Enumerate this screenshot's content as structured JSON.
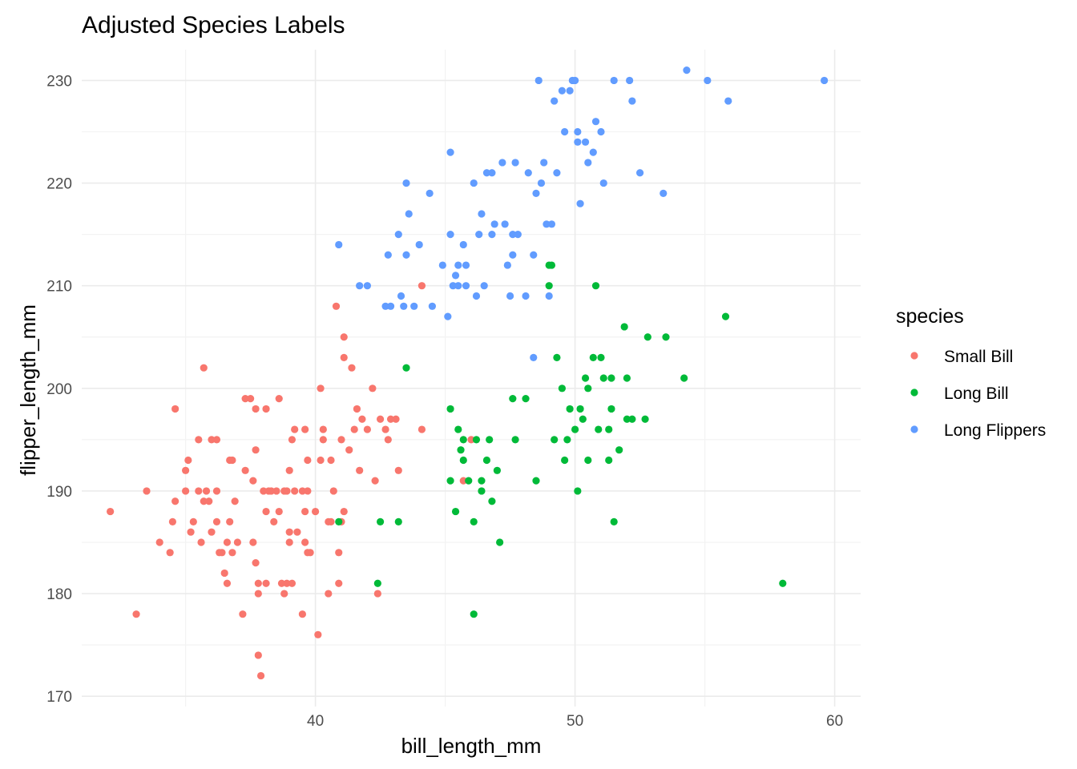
{
  "chart_data": {
    "type": "scatter",
    "title": "Adjusted Species Labels",
    "xlabel": "bill_length_mm",
    "ylabel": "flipper_length_mm",
    "xlim": [
      31,
      61
    ],
    "ylim": [
      169,
      233
    ],
    "x_ticks": [
      40,
      50,
      60
    ],
    "y_ticks": [
      170,
      180,
      190,
      200,
      210,
      220,
      230
    ],
    "grid": true,
    "legend": {
      "title": "species",
      "position": "right"
    },
    "series": [
      {
        "name": "Small Bill",
        "color": "#F8766D",
        "points": [
          [
            32.1,
            188
          ],
          [
            33.1,
            178
          ],
          [
            33.5,
            190
          ],
          [
            34.0,
            185
          ],
          [
            34.4,
            184
          ],
          [
            34.5,
            187
          ],
          [
            34.6,
            189
          ],
          [
            34.6,
            198
          ],
          [
            35.0,
            190
          ],
          [
            35.0,
            192
          ],
          [
            35.1,
            193
          ],
          [
            35.2,
            186
          ],
          [
            35.3,
            187
          ],
          [
            35.5,
            190
          ],
          [
            35.5,
            195
          ],
          [
            35.6,
            185
          ],
          [
            35.7,
            189
          ],
          [
            35.7,
            202
          ],
          [
            35.8,
            190
          ],
          [
            35.9,
            189
          ],
          [
            36.0,
            186
          ],
          [
            36.0,
            195
          ],
          [
            36.2,
            190
          ],
          [
            36.2,
            187
          ],
          [
            36.3,
            184
          ],
          [
            36.4,
            184
          ],
          [
            36.5,
            182
          ],
          [
            36.6,
            185
          ],
          [
            36.6,
            181
          ],
          [
            36.7,
            187
          ],
          [
            36.7,
            193
          ],
          [
            36.8,
            184
          ],
          [
            36.9,
            189
          ],
          [
            36.8,
            193
          ],
          [
            37.0,
            185
          ],
          [
            37.2,
            178
          ],
          [
            37.3,
            192
          ],
          [
            37.3,
            199
          ],
          [
            37.5,
            199
          ],
          [
            37.6,
            191
          ],
          [
            37.6,
            185
          ],
          [
            37.7,
            183
          ],
          [
            37.7,
            198
          ],
          [
            37.7,
            194
          ],
          [
            37.8,
            181
          ],
          [
            37.8,
            180
          ],
          [
            37.8,
            174
          ],
          [
            37.9,
            172
          ],
          [
            38.0,
            190
          ],
          [
            38.1,
            181
          ],
          [
            38.1,
            188
          ],
          [
            38.1,
            198
          ],
          [
            38.2,
            190
          ],
          [
            38.3,
            190
          ],
          [
            38.5,
            190
          ],
          [
            38.6,
            199
          ],
          [
            38.6,
            188
          ],
          [
            38.7,
            181
          ],
          [
            38.8,
            180
          ],
          [
            38.8,
            190
          ],
          [
            38.9,
            181
          ],
          [
            38.9,
            190
          ],
          [
            39.0,
            185
          ],
          [
            39.0,
            186
          ],
          [
            39.0,
            192
          ],
          [
            39.1,
            181
          ],
          [
            39.1,
            195
          ],
          [
            39.2,
            190
          ],
          [
            39.2,
            196
          ],
          [
            39.3,
            186
          ],
          [
            39.5,
            190
          ],
          [
            39.5,
            178
          ],
          [
            39.6,
            188
          ],
          [
            39.6,
            196
          ],
          [
            39.6,
            185
          ],
          [
            39.7,
            190
          ],
          [
            39.7,
            184
          ],
          [
            39.8,
            184
          ],
          [
            40.0,
            188
          ],
          [
            40.1,
            176
          ],
          [
            40.2,
            200
          ],
          [
            40.2,
            193
          ],
          [
            40.3,
            196
          ],
          [
            40.3,
            195
          ],
          [
            40.5,
            180
          ],
          [
            40.5,
            187
          ],
          [
            40.6,
            193
          ],
          [
            40.6,
            187
          ],
          [
            40.7,
            190
          ],
          [
            40.8,
            208
          ],
          [
            40.9,
            184
          ],
          [
            41.0,
            187
          ],
          [
            41.0,
            195
          ],
          [
            41.1,
            188
          ],
          [
            41.1,
            203
          ],
          [
            41.1,
            205
          ],
          [
            41.3,
            194
          ],
          [
            41.4,
            202
          ],
          [
            41.5,
            196
          ],
          [
            41.6,
            198
          ],
          [
            41.8,
            197
          ],
          [
            42.0,
            196
          ],
          [
            42.2,
            200
          ],
          [
            42.3,
            191
          ],
          [
            42.5,
            197
          ],
          [
            42.7,
            196
          ],
          [
            42.8,
            195
          ],
          [
            42.9,
            197
          ],
          [
            43.1,
            197
          ],
          [
            43.2,
            192
          ],
          [
            44.1,
            196
          ],
          [
            44.1,
            210
          ],
          [
            45.7,
            191
          ],
          [
            46.0,
            195
          ],
          [
            42.4,
            180
          ],
          [
            41.7,
            192
          ],
          [
            40.9,
            181
          ],
          [
            39.7,
            193
          ],
          [
            38.4,
            187
          ],
          [
            36.2,
            195
          ]
        ]
      },
      {
        "name": "Long Bill",
        "color": "#00BA38",
        "points": [
          [
            40.9,
            187
          ],
          [
            42.4,
            181
          ],
          [
            42.5,
            187
          ],
          [
            43.2,
            187
          ],
          [
            43.5,
            202
          ],
          [
            45.2,
            191
          ],
          [
            45.2,
            198
          ],
          [
            45.4,
            188
          ],
          [
            45.5,
            196
          ],
          [
            45.6,
            194
          ],
          [
            45.7,
            195
          ],
          [
            45.7,
            193
          ],
          [
            45.9,
            191
          ],
          [
            46.1,
            178
          ],
          [
            46.1,
            187
          ],
          [
            46.2,
            195
          ],
          [
            46.4,
            190
          ],
          [
            46.4,
            191
          ],
          [
            46.6,
            193
          ],
          [
            46.7,
            195
          ],
          [
            46.8,
            189
          ],
          [
            47.0,
            192
          ],
          [
            47.1,
            185
          ],
          [
            47.6,
            199
          ],
          [
            47.7,
            195
          ],
          [
            48.1,
            199
          ],
          [
            48.5,
            191
          ],
          [
            49.0,
            210
          ],
          [
            49.0,
            212
          ],
          [
            49.1,
            212
          ],
          [
            49.2,
            195
          ],
          [
            49.3,
            203
          ],
          [
            49.5,
            200
          ],
          [
            49.6,
            193
          ],
          [
            49.7,
            195
          ],
          [
            49.8,
            198
          ],
          [
            50.0,
            196
          ],
          [
            50.1,
            190
          ],
          [
            50.2,
            198
          ],
          [
            50.3,
            197
          ],
          [
            50.4,
            201
          ],
          [
            50.5,
            193
          ],
          [
            50.5,
            200
          ],
          [
            50.7,
            203
          ],
          [
            50.8,
            210
          ],
          [
            50.9,
            196
          ],
          [
            51.0,
            203
          ],
          [
            51.1,
            201
          ],
          [
            51.3,
            193
          ],
          [
            51.3,
            196
          ],
          [
            51.4,
            198
          ],
          [
            51.4,
            201
          ],
          [
            51.5,
            187
          ],
          [
            51.7,
            194
          ],
          [
            51.9,
            206
          ],
          [
            52.0,
            197
          ],
          [
            52.0,
            201
          ],
          [
            52.2,
            197
          ],
          [
            52.7,
            197
          ],
          [
            52.8,
            205
          ],
          [
            53.5,
            205
          ],
          [
            54.2,
            201
          ],
          [
            55.8,
            207
          ],
          [
            58.0,
            181
          ]
        ]
      },
      {
        "name": "Long Flippers",
        "color": "#619CFF",
        "points": [
          [
            40.9,
            214
          ],
          [
            41.7,
            210
          ],
          [
            42.0,
            210
          ],
          [
            42.7,
            208
          ],
          [
            42.8,
            213
          ],
          [
            42.9,
            208
          ],
          [
            43.2,
            215
          ],
          [
            43.3,
            209
          ],
          [
            43.4,
            208
          ],
          [
            43.5,
            213
          ],
          [
            43.5,
            220
          ],
          [
            43.6,
            217
          ],
          [
            43.8,
            208
          ],
          [
            44.0,
            214
          ],
          [
            44.4,
            219
          ],
          [
            44.5,
            208
          ],
          [
            44.9,
            212
          ],
          [
            45.1,
            207
          ],
          [
            45.2,
            215
          ],
          [
            45.2,
            223
          ],
          [
            45.3,
            210
          ],
          [
            45.4,
            211
          ],
          [
            45.5,
            212
          ],
          [
            45.5,
            210
          ],
          [
            45.7,
            214
          ],
          [
            45.8,
            210
          ],
          [
            45.8,
            212
          ],
          [
            46.1,
            220
          ],
          [
            46.2,
            209
          ],
          [
            46.3,
            215
          ],
          [
            46.4,
            217
          ],
          [
            46.5,
            210
          ],
          [
            46.6,
            221
          ],
          [
            46.8,
            215
          ],
          [
            46.8,
            221
          ],
          [
            46.9,
            216
          ],
          [
            47.2,
            222
          ],
          [
            47.3,
            216
          ],
          [
            47.4,
            212
          ],
          [
            47.5,
            209
          ],
          [
            47.6,
            215
          ],
          [
            47.7,
            222
          ],
          [
            47.8,
            215
          ],
          [
            48.1,
            209
          ],
          [
            48.2,
            221
          ],
          [
            48.4,
            213
          ],
          [
            48.5,
            219
          ],
          [
            48.6,
            230
          ],
          [
            48.7,
            220
          ],
          [
            48.8,
            222
          ],
          [
            49.1,
            216
          ],
          [
            49.2,
            228
          ],
          [
            49.5,
            229
          ],
          [
            49.6,
            225
          ],
          [
            49.8,
            229
          ],
          [
            49.9,
            230
          ],
          [
            50.0,
            230
          ],
          [
            50.1,
            225
          ],
          [
            50.2,
            218
          ],
          [
            50.4,
            224
          ],
          [
            50.5,
            222
          ],
          [
            50.7,
            223
          ],
          [
            50.8,
            226
          ],
          [
            51.0,
            225
          ],
          [
            51.1,
            220
          ],
          [
            51.5,
            230
          ],
          [
            52.1,
            230
          ],
          [
            52.2,
            228
          ],
          [
            52.5,
            221
          ],
          [
            53.4,
            219
          ],
          [
            54.3,
            231
          ],
          [
            55.1,
            230
          ],
          [
            55.9,
            228
          ],
          [
            59.6,
            230
          ],
          [
            48.4,
            203
          ],
          [
            49.0,
            209
          ],
          [
            47.6,
            213
          ],
          [
            48.9,
            216
          ],
          [
            50.1,
            224
          ],
          [
            49.3,
            221
          ]
        ]
      }
    ]
  }
}
